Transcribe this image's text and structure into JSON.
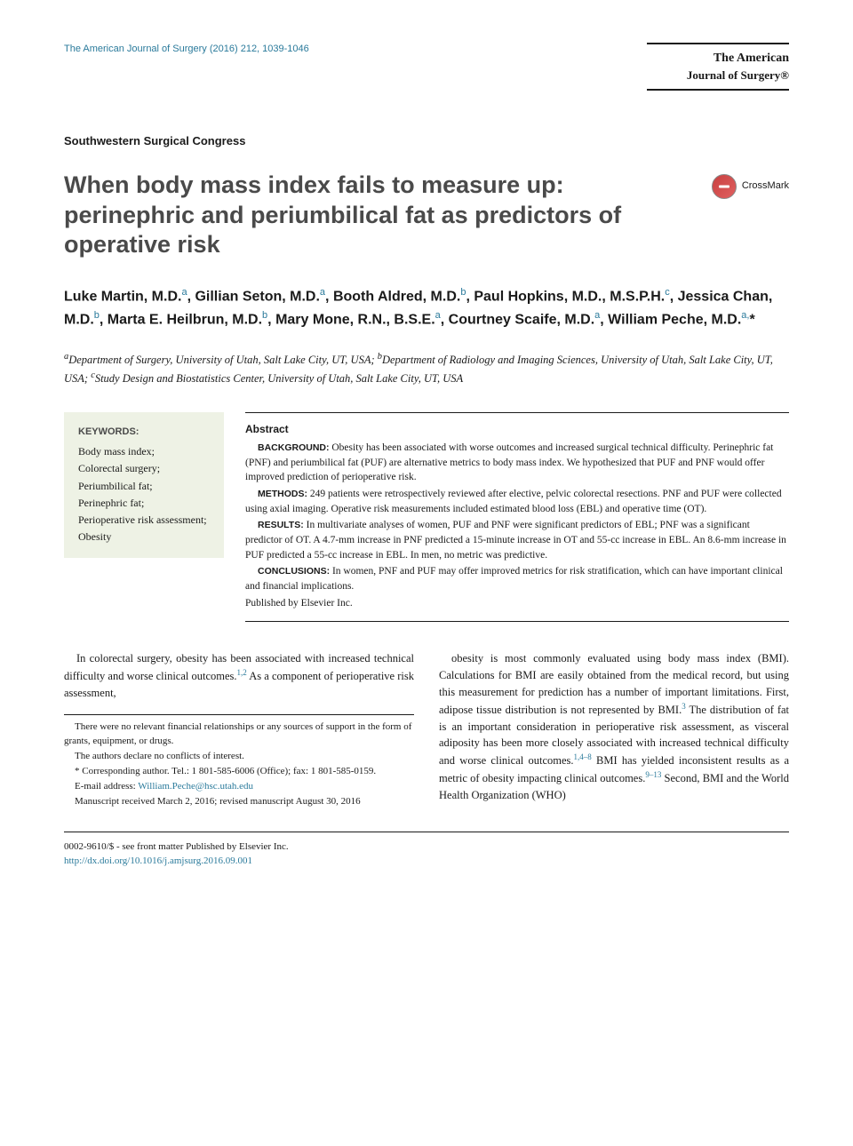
{
  "header": {
    "citation": "The American Journal of Surgery (2016) 212, 1039-1046",
    "journal_name_line1": "The American",
    "journal_name_line2": "Journal of Surgery®"
  },
  "section_label": "Southwestern Surgical Congress",
  "title": "When body mass index fails to measure up: perinephric and periumbilical fat as predictors of operative risk",
  "crossmark_label": "CrossMark",
  "authors_html": "Luke Martin, M.D.<sup>a</sup>, Gillian Seton, M.D.<sup>a</sup>, Booth Aldred, M.D.<sup>b</sup>, Paul Hopkins, M.D., M.S.P.H.<sup>c</sup>, Jessica Chan, M.D.<sup>b</sup>, Marta E. Heilbrun, M.D.<sup>b</sup>, Mary Mone, R.N., B.S.E.<sup>a</sup>, Courtney Scaife, M.D.<sup>a</sup>, William Peche, M.D.<sup>a,</sup>*",
  "affiliations_html": "<sup>a</sup>Department of Surgery, University of Utah, Salt Lake City, UT, USA; <sup>b</sup>Department of Radiology and Imaging Sciences, University of Utah, Salt Lake City, UT, USA; <sup>c</sup>Study Design and Biostatistics Center, University of Utah, Salt Lake City, UT, USA",
  "keywords": {
    "heading": "KEYWORDS:",
    "items": [
      "Body mass index;",
      "Colorectal surgery;",
      "Periumbilical fat;",
      "Perinephric fat;",
      "Perioperative risk assessment;",
      "Obesity"
    ]
  },
  "abstract": {
    "heading": "Abstract",
    "background_label": "BACKGROUND:",
    "background": "Obesity has been associated with worse outcomes and increased surgical technical difficulty. Perinephric fat (PNF) and periumbilical fat (PUF) are alternative metrics to body mass index. We hypothesized that PUF and PNF would offer improved prediction of perioperative risk.",
    "methods_label": "METHODS:",
    "methods": "249 patients were retrospectively reviewed after elective, pelvic colorectal resections. PNF and PUF were collected using axial imaging. Operative risk measurements included estimated blood loss (EBL) and operative time (OT).",
    "results_label": "RESULTS:",
    "results": "In multivariate analyses of women, PUF and PNF were significant predictors of EBL; PNF was a significant predictor of OT. A 4.7-mm increase in PNF predicted a 15-minute increase in OT and 55-cc increase in EBL. An 8.6-mm increase in PUF predicted a 55-cc increase in EBL. In men, no metric was predictive.",
    "conclusions_label": "CONCLUSIONS:",
    "conclusions": "In women, PNF and PUF may offer improved metrics for risk stratification, which can have important clinical and financial implications.",
    "publisher": "Published by Elsevier Inc."
  },
  "body": {
    "col1_p1_html": "In colorectal surgery, obesity has been associated with increased technical difficulty and worse clinical outcomes.<sup>1,2</sup> As a component of perioperative risk assessment,",
    "col2_p1_html": "obesity is most commonly evaluated using body mass index (BMI). Calculations for BMI are easily obtained from the medical record, but using this measurement for prediction has a number of important limitations. First, adipose tissue distribution is not represented by BMI.<sup>3</sup> The distribution of fat is an important consideration in perioperative risk assessment, as visceral adiposity has been more closely associated with increased technical difficulty and worse clinical outcomes.<sup>1,4–8</sup> BMI has yielded inconsistent results as a metric of obesity impacting clinical outcomes.<sup>9–13</sup> Second, BMI and the World Health Organization (WHO)"
  },
  "footnotes": {
    "fn1": "There were no relevant financial relationships or any sources of support in the form of grants, equipment, or drugs.",
    "fn2": "The authors declare no conflicts of interest.",
    "fn3": "* Corresponding author. Tel.: 1 801-585-6006 (Office); fax: 1 801-585-0159.",
    "fn4_label": "E-mail address: ",
    "fn4_email": "William.Peche@hsc.utah.edu",
    "fn5": "Manuscript received March 2, 2016; revised manuscript August 30, 2016"
  },
  "bottom": {
    "line1": "0002-9610/$ - see front matter Published by Elsevier Inc.",
    "doi": "http://dx.doi.org/10.1016/j.amjsurg.2016.09.001"
  },
  "colors": {
    "link": "#2a7a9b",
    "keyword_bg": "#eef2e5",
    "title_gray": "#4a4a4a"
  }
}
